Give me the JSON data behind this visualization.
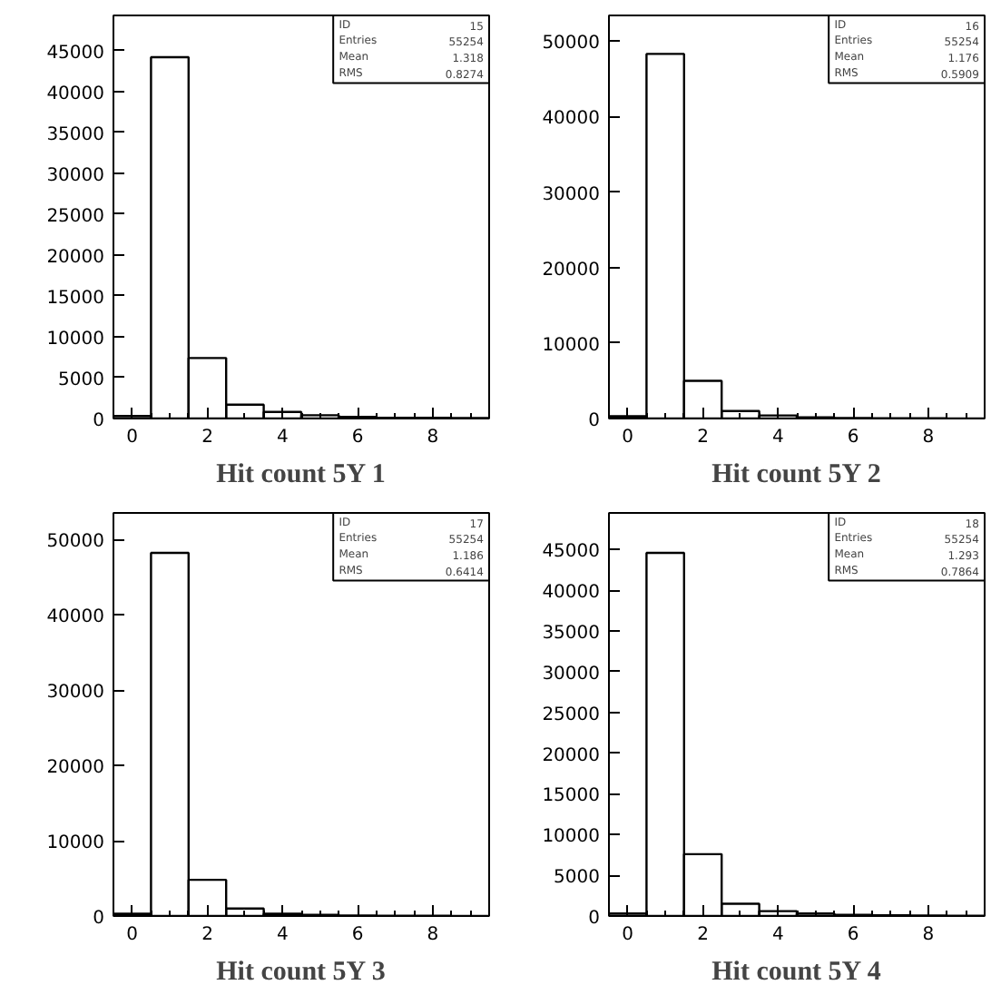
{
  "chart_data": [
    {
      "type": "histogram",
      "title": "Hit count 5Y 1",
      "bins": [
        -0.5,
        0.5,
        1.5,
        2.5,
        3.5,
        4.5,
        5.5,
        6.5,
        7.5,
        8.5,
        9.5
      ],
      "values": [
        300,
        44200,
        7400,
        1700,
        800,
        400,
        200,
        100,
        80,
        50
      ],
      "color": "#000000",
      "xlim": [
        -0.5,
        9.5
      ],
      "ylim": [
        0,
        49300
      ],
      "xticks": [
        0,
        2,
        4,
        6,
        8
      ],
      "yticks": [
        0,
        5000,
        10000,
        15000,
        20000,
        25000,
        30000,
        35000,
        40000,
        45000
      ],
      "grid": false,
      "annotations": [
        "ID",
        "15",
        "Entries",
        "55254",
        "Mean",
        "1.318",
        "RMS",
        "0.8274"
      ]
    },
    {
      "type": "histogram",
      "title": "Hit count 5Y 2",
      "bins": [
        -0.5,
        0.5,
        1.5,
        2.5,
        3.5,
        4.5,
        5.5,
        6.5,
        7.5,
        8.5,
        9.5
      ],
      "values": [
        300,
        48300,
        5000,
        1000,
        400,
        150,
        80,
        50,
        30,
        20
      ],
      "color": "#000000",
      "xlim": [
        -0.5,
        9.5
      ],
      "ylim": [
        0,
        53400
      ],
      "xticks": [
        0,
        2,
        4,
        6,
        8
      ],
      "yticks": [
        0,
        10000,
        20000,
        30000,
        40000,
        50000
      ],
      "grid": false,
      "annotations": [
        "ID",
        "16",
        "Entries",
        "55254",
        "Mean",
        "1.176",
        "RMS",
        "0.5909"
      ]
    },
    {
      "type": "histogram",
      "title": "Hit count 5Y 3",
      "bins": [
        -0.5,
        0.5,
        1.5,
        2.5,
        3.5,
        4.5,
        5.5,
        6.5,
        7.5,
        8.5,
        9.5
      ],
      "values": [
        300,
        48200,
        4800,
        1000,
        300,
        150,
        80,
        50,
        30,
        20
      ],
      "color": "#000000",
      "xlim": [
        -0.5,
        9.5
      ],
      "ylim": [
        0,
        53500
      ],
      "xticks": [
        0,
        2,
        4,
        6,
        8
      ],
      "yticks": [
        0,
        10000,
        20000,
        30000,
        40000,
        50000
      ],
      "grid": false,
      "annotations": [
        "ID",
        "17",
        "Entries",
        "55254",
        "Mean",
        "1.186",
        "RMS",
        "0.6414"
      ]
    },
    {
      "type": "histogram",
      "title": "Hit count 5Y 4",
      "bins": [
        -0.5,
        0.5,
        1.5,
        2.5,
        3.5,
        4.5,
        5.5,
        6.5,
        7.5,
        8.5,
        9.5
      ],
      "values": [
        300,
        44600,
        7600,
        1500,
        600,
        300,
        150,
        100,
        60,
        40
      ],
      "color": "#000000",
      "xlim": [
        -0.5,
        9.5
      ],
      "ylim": [
        0,
        49500
      ],
      "xticks": [
        0,
        2,
        4,
        6,
        8
      ],
      "yticks": [
        0,
        5000,
        10000,
        15000,
        20000,
        25000,
        30000,
        35000,
        40000,
        45000
      ],
      "grid": false,
      "annotations": [
        "ID",
        "18",
        "Entries",
        "55254",
        "Mean",
        "1.293",
        "RMS",
        "0.7864"
      ]
    }
  ]
}
